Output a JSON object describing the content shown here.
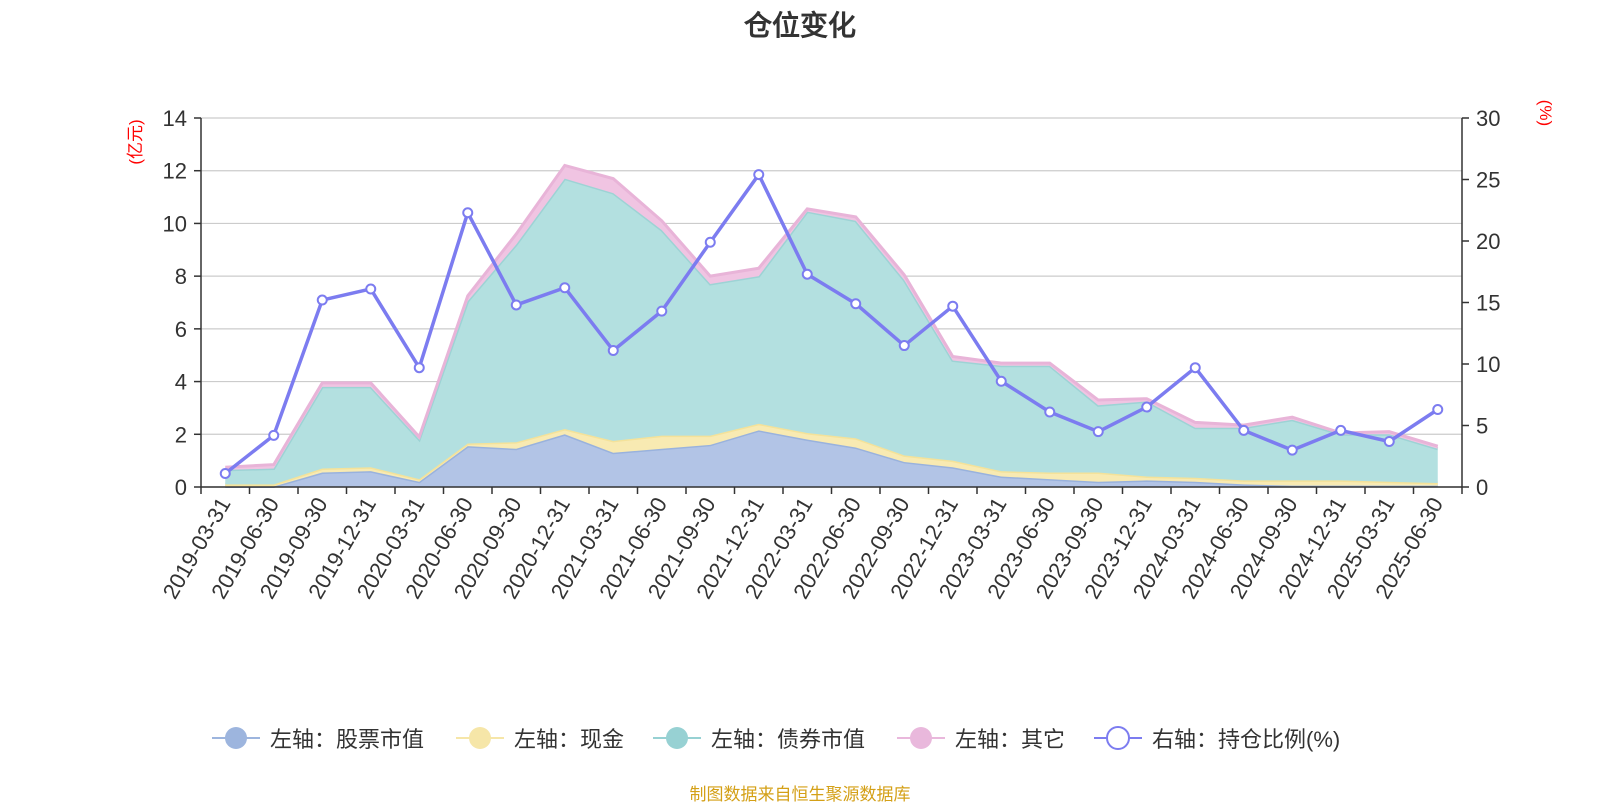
{
  "chart_data": {
    "type": "area",
    "title": "仓位变化",
    "left_axis_label": "(亿元)",
    "right_axis_label": "(%)",
    "x": [
      "2019-03-31",
      "2019-06-30",
      "2019-09-30",
      "2019-12-31",
      "2020-03-31",
      "2020-06-30",
      "2020-09-30",
      "2020-12-31",
      "2021-03-31",
      "2021-06-30",
      "2021-09-30",
      "2021-12-31",
      "2022-03-31",
      "2022-06-30",
      "2022-09-30",
      "2022-12-31",
      "2023-03-31",
      "2023-06-30",
      "2023-09-30",
      "2023-12-31",
      "2024-03-31",
      "2024-06-30",
      "2024-09-30",
      "2024-12-31",
      "2025-03-31",
      "2025-06-30"
    ],
    "ylim_left": [
      0,
      14
    ],
    "yticks_left": [
      0,
      2,
      4,
      6,
      8,
      10,
      12,
      14
    ],
    "ylim_right": [
      0,
      30
    ],
    "yticks_right": [
      0,
      5,
      10,
      15,
      20,
      25,
      30
    ],
    "stacked_series": [
      {
        "name": "左轴：股票市值",
        "axis": "left",
        "fill": "#b2c4e6",
        "stroke": "#99b2dd",
        "values": [
          0.02,
          0.02,
          0.55,
          0.6,
          0.2,
          1.55,
          1.45,
          2.0,
          1.3,
          1.45,
          1.6,
          2.15,
          1.8,
          1.5,
          0.95,
          0.75,
          0.4,
          0.3,
          0.2,
          0.25,
          0.2,
          0.1,
          0.05,
          0.05,
          0.05,
          0.05
        ]
      },
      {
        "name": "左轴：现金",
        "axis": "left",
        "fill": "#f8eab2",
        "stroke": "#f4e29a",
        "values": [
          0.08,
          0.08,
          0.15,
          0.15,
          0.1,
          0.1,
          0.25,
          0.2,
          0.45,
          0.5,
          0.35,
          0.25,
          0.25,
          0.35,
          0.25,
          0.25,
          0.2,
          0.25,
          0.35,
          0.15,
          0.15,
          0.15,
          0.2,
          0.2,
          0.15,
          0.1
        ]
      },
      {
        "name": "左轴：债券市值",
        "axis": "left",
        "fill": "#b3e0e0",
        "stroke": "#9dd3d5",
        "values": [
          0.55,
          0.6,
          3.1,
          3.05,
          1.5,
          5.4,
          7.5,
          9.5,
          9.4,
          7.8,
          5.75,
          5.6,
          8.4,
          8.25,
          6.65,
          3.8,
          4.0,
          4.05,
          2.55,
          2.85,
          1.9,
          2.0,
          2.3,
          1.75,
          1.8,
          1.3
        ]
      },
      {
        "name": "左轴：其它",
        "axis": "left",
        "fill": "#f0c4e2",
        "stroke": "#e8b4d8",
        "values": [
          0.1,
          0.15,
          0.15,
          0.15,
          0.1,
          0.2,
          0.4,
          0.5,
          0.55,
          0.35,
          0.3,
          0.3,
          0.1,
          0.15,
          0.2,
          0.15,
          0.1,
          0.1,
          0.2,
          0.1,
          0.2,
          0.1,
          0.1,
          0.05,
          0.1,
          0.1
        ]
      }
    ],
    "line_series": {
      "name": "右轴：持仓比例(%)",
      "axis": "right",
      "color": "#7c7cf0",
      "values": [
        1.1,
        4.2,
        15.2,
        16.1,
        9.7,
        22.3,
        14.8,
        16.2,
        11.1,
        14.3,
        19.9,
        25.4,
        17.3,
        14.9,
        11.5,
        14.7,
        8.6,
        6.1,
        4.5,
        6.5,
        9.7,
        4.6,
        3.0,
        4.6,
        3.7,
        6.3
      ]
    },
    "grid": true,
    "legend_position": "bottom"
  },
  "legend": [
    {
      "label": "左轴：股票市值",
      "color": "#9db5de",
      "kind": "area"
    },
    {
      "label": "左轴：现金",
      "color": "#f6e6a8",
      "kind": "area"
    },
    {
      "label": "左轴：债券市值",
      "color": "#97d1d3",
      "kind": "area"
    },
    {
      "label": "左轴：其它",
      "color": "#e9b8dc",
      "kind": "area"
    },
    {
      "label": "右轴：持仓比例(%)",
      "color": "#7c7cf0",
      "kind": "line"
    }
  ],
  "source": "制图数据来自恒生聚源数据库"
}
